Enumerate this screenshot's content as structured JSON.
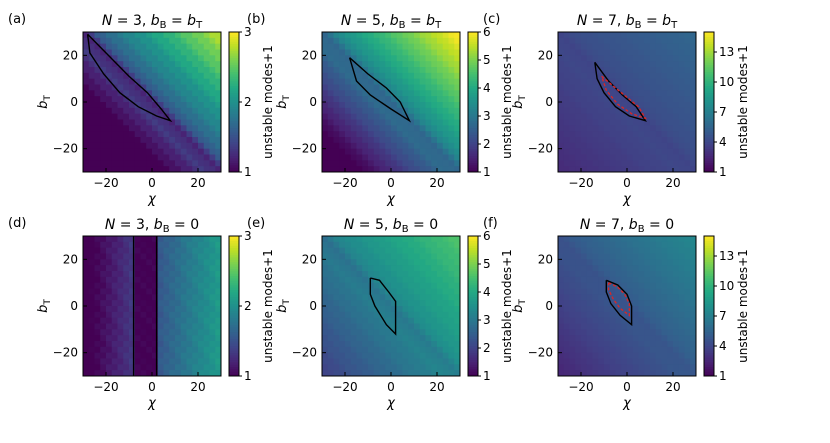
{
  "chart_data": [
    {
      "type": "heatmap",
      "panel_label": "(a)",
      "title": "N = 3, b_B = b_T",
      "title_parts": {
        "n": "3",
        "bb": "b_T"
      },
      "xlabel": "χ",
      "ylabel": "b_T",
      "xlim": [
        -30,
        30
      ],
      "ylim": [
        -30,
        30
      ],
      "xticks": [
        -20,
        0,
        20
      ],
      "yticks": [
        -20,
        0,
        20
      ],
      "colorbar": {
        "label": "unstable modes+1",
        "range": [
          1,
          3
        ],
        "ticks": [
          1,
          2,
          3
        ]
      },
      "field": {
        "base": 1.5,
        "a": 0.022,
        "b": 0.022,
        "c": 0.0,
        "d": 0.0,
        "diag": 0.26,
        "vband": null
      },
      "contours": [
        {
          "color": "black",
          "style": "solid",
          "points": [
            [
              -28,
              29
            ],
            [
              -19,
              20
            ],
            [
              -10,
              11
            ],
            [
              -2,
              4
            ],
            [
              4,
              -3
            ],
            [
              8,
              -8
            ],
            [
              2,
              -6
            ],
            [
              -6,
              -2
            ],
            [
              -14,
              4
            ],
            [
              -21,
              12
            ],
            [
              -27,
              21
            ],
            [
              -28,
              29
            ]
          ]
        }
      ]
    },
    {
      "type": "heatmap",
      "panel_label": "(b)",
      "title": "N = 5, b_B = b_T",
      "title_parts": {
        "n": "5",
        "bb": "b_T"
      },
      "xlabel": "χ",
      "ylabel": "b_T",
      "xlim": [
        -30,
        30
      ],
      "ylim": [
        -30,
        30
      ],
      "xticks": [
        -20,
        0,
        20
      ],
      "yticks": [
        -20,
        0,
        20
      ],
      "colorbar": {
        "label": "unstable modes+1",
        "range": [
          1,
          6
        ],
        "ticks": [
          1,
          2,
          3,
          4,
          5,
          6
        ]
      },
      "field": {
        "base": 3.1,
        "a": 0.05,
        "b": 0.05,
        "c": 0.0,
        "d": 0.0,
        "diag": 0.4,
        "vband": null
      },
      "contours": [
        {
          "color": "black",
          "style": "solid",
          "points": [
            [
              -18,
              19
            ],
            [
              -10,
              12
            ],
            [
              -2,
              6
            ],
            [
              4,
              0
            ],
            [
              8,
              -8
            ],
            [
              0,
              -3
            ],
            [
              -9,
              3
            ],
            [
              -15,
              9
            ],
            [
              -18,
              19
            ]
          ]
        }
      ]
    },
    {
      "type": "heatmap",
      "panel_label": "(c)",
      "title": "N = 7, b_B = b_T",
      "title_parts": {
        "n": "7",
        "bb": "b_T"
      },
      "xlabel": "χ",
      "ylabel": "b_T",
      "xlim": [
        -30,
        30
      ],
      "ylim": [
        -30,
        30
      ],
      "xticks": [
        -20,
        0,
        20
      ],
      "yticks": [
        -20,
        0,
        20
      ],
      "colorbar": {
        "label": "unstable modes+1",
        "range": [
          1,
          15
        ],
        "ticks": [
          1,
          4,
          7,
          10,
          13
        ]
      },
      "field": {
        "base": 4.2,
        "a": 0.025,
        "b": 0.025,
        "c": 0.0,
        "d": 0.0,
        "diag": 0.3,
        "vband": null
      },
      "contours": [
        {
          "color": "black",
          "style": "solid",
          "points": [
            [
              -14,
              17
            ],
            [
              -8,
              9
            ],
            [
              -2,
              3
            ],
            [
              4,
              -2
            ],
            [
              8,
              -8
            ],
            [
              1,
              -6
            ],
            [
              -5,
              -2
            ],
            [
              -10,
              4
            ],
            [
              -13,
              10
            ],
            [
              -14,
              17
            ]
          ]
        },
        {
          "color": "#d62728",
          "style": "dashed",
          "points": [
            [
              -11,
              11
            ],
            [
              -5,
              6
            ],
            [
              0,
              2
            ],
            [
              5,
              -2
            ],
            [
              8,
              -7
            ],
            [
              2,
              -5
            ],
            [
              -4,
              -1
            ],
            [
              -9,
              5
            ],
            [
              -11,
              11
            ]
          ]
        }
      ]
    },
    {
      "type": "heatmap",
      "panel_label": "(d)",
      "title": "N = 3, b_B = 0",
      "title_parts": {
        "n": "3",
        "bb": "0"
      },
      "xlabel": "χ",
      "ylabel": "b_T",
      "xlim": [
        -30,
        30
      ],
      "ylim": [
        -30,
        30
      ],
      "xticks": [
        -20,
        0,
        20
      ],
      "yticks": [
        -20,
        0,
        20
      ],
      "colorbar": {
        "label": "unstable modes+1",
        "range": [
          1,
          3
        ],
        "ticks": [
          1,
          2,
          3
        ]
      },
      "field": {
        "base": 1.5,
        "a": 0.02,
        "b": 0.0,
        "c": 0.0,
        "d": 0.0,
        "diag": 0.0,
        "vband": [
          -8,
          2,
          1.0
        ]
      },
      "contours": [
        {
          "color": "black",
          "style": "solid",
          "points": [
            [
              -8,
              30
            ],
            [
              -8,
              -30
            ]
          ]
        },
        {
          "color": "black",
          "style": "solid",
          "points": [
            [
              2,
              30
            ],
            [
              2,
              -30
            ]
          ]
        }
      ]
    },
    {
      "type": "heatmap",
      "panel_label": "(e)",
      "title": "N = 5, b_B = 0",
      "title_parts": {
        "n": "5",
        "bb": "0"
      },
      "xlabel": "χ",
      "ylabel": "b_T",
      "xlim": [
        -30,
        30
      ],
      "ylim": [
        -30,
        30
      ],
      "xticks": [
        -20,
        0,
        20
      ],
      "yticks": [
        -20,
        0,
        20
      ],
      "colorbar": {
        "label": "unstable modes+1",
        "range": [
          1,
          6
        ],
        "ticks": [
          1,
          2,
          3,
          4,
          5,
          6
        ]
      },
      "field": {
        "base": 3.3,
        "a": 0.025,
        "b": 0.02,
        "c": 0.0,
        "d": 0.0,
        "diag": 0.3,
        "vband": null
      },
      "contours": [
        {
          "color": "black",
          "style": "solid",
          "points": [
            [
              -9,
              12
            ],
            [
              -5,
              11
            ],
            [
              -1,
              6
            ],
            [
              2,
              2
            ],
            [
              2,
              -12
            ],
            [
              -2,
              -8
            ],
            [
              -7,
              0
            ],
            [
              -9,
              5
            ],
            [
              -9,
              12
            ]
          ]
        }
      ]
    },
    {
      "type": "heatmap",
      "panel_label": "(f)",
      "title": "N = 7, b_B = 0",
      "title_parts": {
        "n": "7",
        "bb": "0"
      },
      "xlabel": "χ",
      "ylabel": "b_T",
      "xlim": [
        -30,
        30
      ],
      "ylim": [
        -30,
        30
      ],
      "xticks": [
        -20,
        0,
        20
      ],
      "yticks": [
        -20,
        0,
        20
      ],
      "colorbar": {
        "label": "unstable modes+1",
        "range": [
          1,
          15
        ],
        "ticks": [
          1,
          4,
          7,
          10,
          13
        ]
      },
      "field": {
        "base": 5.0,
        "a": 0.045,
        "b": 0.04,
        "c": 0.0,
        "d": 0.0,
        "diag": 0.3,
        "vband": null
      },
      "contours": [
        {
          "color": "black",
          "style": "solid",
          "points": [
            [
              -9,
              11
            ],
            [
              -4,
              9
            ],
            [
              0,
              5
            ],
            [
              2,
              0
            ],
            [
              2,
              -8
            ],
            [
              -3,
              -4
            ],
            [
              -7,
              1
            ],
            [
              -9,
              6
            ],
            [
              -9,
              11
            ]
          ]
        },
        {
          "color": "#d62728",
          "style": "dashed",
          "points": [
            [
              -8,
              10
            ],
            [
              -4,
              8
            ],
            [
              -1,
              5
            ],
            [
              1,
              1
            ],
            [
              1,
              -4
            ],
            [
              -3,
              -1
            ],
            [
              -6,
              3
            ],
            [
              -8,
              7
            ],
            [
              -8,
              10
            ]
          ]
        }
      ]
    }
  ]
}
